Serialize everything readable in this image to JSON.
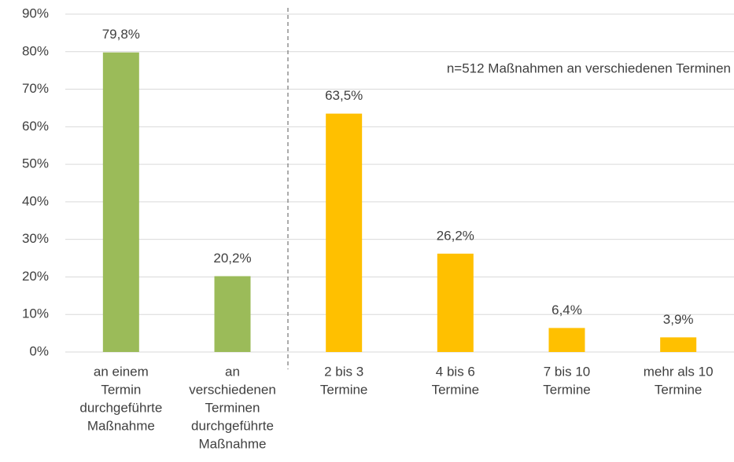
{
  "chart_data": {
    "type": "bar",
    "categories": [
      [
        "an einem",
        "Termin",
        "durchgeführte",
        "Maßnahme"
      ],
      [
        "an",
        "verschiedenen",
        "Terminen",
        "durchgeführte",
        "Maßnahme"
      ],
      [
        "2 bis 3",
        "Termine"
      ],
      [
        "4 bis 6",
        "Termine"
      ],
      [
        "7 bis 10",
        "Termine"
      ],
      [
        "mehr als 10",
        "Termine"
      ]
    ],
    "values": [
      79.8,
      20.2,
      63.5,
      26.2,
      6.4,
      3.9
    ],
    "value_labels": [
      "79,8%",
      "20,2%",
      "63,5%",
      "26,2%",
      "6,4%",
      "3,9%"
    ],
    "colors": [
      "#9bbb59",
      "#9bbb59",
      "#ffc000",
      "#ffc000",
      "#ffc000",
      "#ffc000"
    ],
    "ylim": [
      0,
      90
    ],
    "yticks": [
      {
        "value": 0,
        "label": "0%"
      },
      {
        "value": 10,
        "label": "10%"
      },
      {
        "value": 20,
        "label": "20%"
      },
      {
        "value": 30,
        "label": "30%"
      },
      {
        "value": 40,
        "label": "40%"
      },
      {
        "value": 50,
        "label": "50%"
      },
      {
        "value": 60,
        "label": "60%"
      },
      {
        "value": 70,
        "label": "70%"
      },
      {
        "value": 80,
        "label": "80%"
      },
      {
        "value": 90,
        "label": "90%"
      }
    ],
    "grid": true,
    "annotation": "n=512 Maßnahmen an verschiedenen Terminen"
  }
}
